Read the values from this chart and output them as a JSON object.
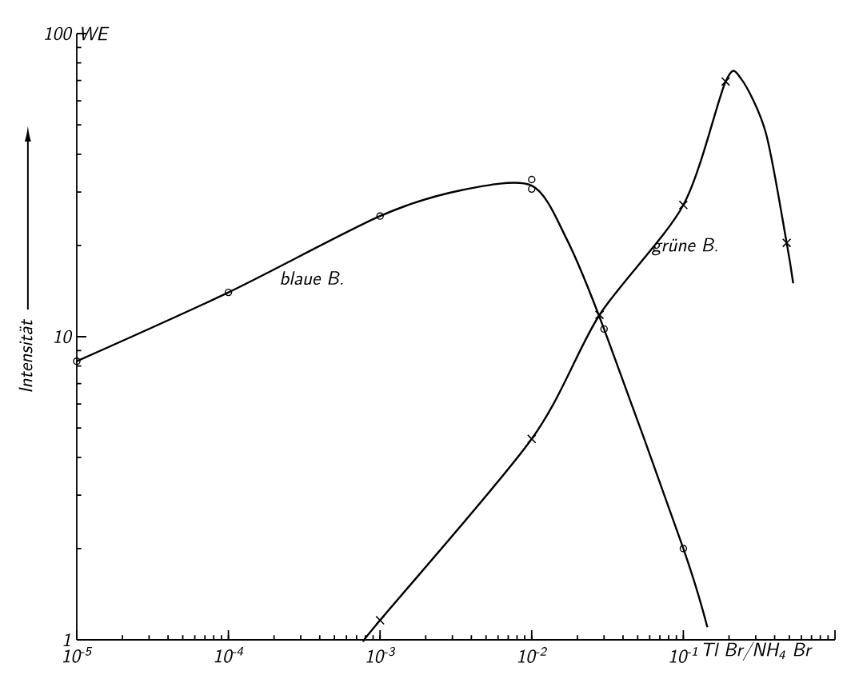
{
  "chart_data": {
    "type": "line",
    "log": "xy",
    "xlabel": "Tl Br/NH$_{4}$ Br",
    "ylabel": "Intensität",
    "xlim": [
      1e-05,
      1
    ],
    "ylim": [
      1,
      100
    ],
    "xticks": [
      {
        "value": 1e-05,
        "label": "10$^{-5}$"
      },
      {
        "value": 0.0001,
        "label": "10$^{-4}$"
      },
      {
        "value": 0.001,
        "label": "10$^{-3}$"
      },
      {
        "value": 0.01,
        "label": "10$^{-2}$"
      },
      {
        "value": 0.1,
        "label": "10$^{-1}$"
      },
      {
        "value": 1,
        "label": null
      }
    ],
    "yticks": [
      1,
      10,
      100
    ],
    "grid": false,
    "series": [
      {
        "name": "blaue B.",
        "marker": "none",
        "color": "#000000",
        "x": [
          1e-05,
          0.0001,
          0.001,
          0.0035,
          0.01,
          0.017,
          0.03,
          0.1,
          0.144
        ],
        "values": [
          8.3,
          14,
          25,
          30.5,
          31.5,
          21,
          10.6,
          2,
          1.1
        ]
      },
      {
        "type": "scatter",
        "marker": "circle",
        "color": "#000000",
        "x": [
          1e-05,
          0.0001,
          0.001,
          0.01,
          0.01,
          0.03,
          0.1
        ],
        "values": [
          8.3,
          14,
          25,
          33,
          30.7,
          10.6,
          2
        ]
      },
      {
        "name": "grüne B.",
        "marker": "none",
        "color": "#000000",
        "x": [
          0.00079,
          0.001,
          0.01,
          0.028,
          0.1,
          0.19,
          0.24,
          0.35,
          0.48,
          0.53
        ],
        "values": [
          1,
          1.16,
          4.6,
          11.8,
          27.2,
          69.5,
          71,
          47,
          20.4,
          15
        ]
      },
      {
        "type": "scatter",
        "marker": "cross",
        "color": "#000000",
        "x": [
          0.001,
          0.01,
          0.028,
          0.1,
          0.19,
          0.48
        ],
        "values": [
          1.16,
          4.6,
          11.8,
          27.2,
          69.5,
          20.4
        ]
      }
    ],
    "annotations": [
      "WE"
    ]
  }
}
